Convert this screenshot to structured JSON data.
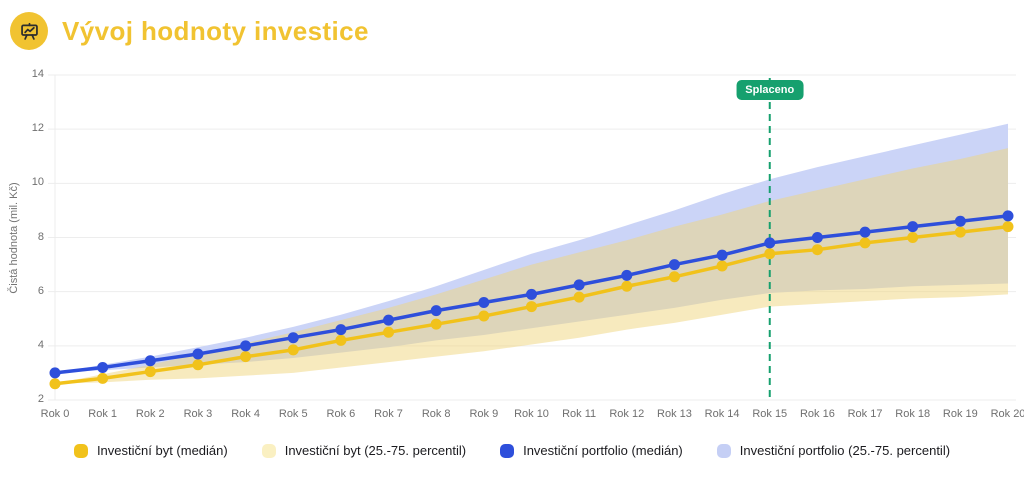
{
  "header": {
    "title": "Vývoj hodnoty investice",
    "icon": "presentation-chart-icon",
    "accent_color": "#F1C331"
  },
  "chart_data": {
    "type": "line",
    "title": "Vývoj hodnoty investice",
    "xlabel": "",
    "ylabel": "Čistá hodnota (mil. Kč)",
    "ylim": [
      2,
      14
    ],
    "yticks": [
      2,
      4,
      6,
      8,
      10,
      12,
      14
    ],
    "grid": "horizontal",
    "legend_position": "bottom",
    "categories": [
      "Rok 0",
      "Rok 1",
      "Rok 2",
      "Rok 3",
      "Rok 4",
      "Rok 5",
      "Rok 6",
      "Rok 7",
      "Rok 8",
      "Rok 9",
      "Rok 10",
      "Rok 11",
      "Rok 12",
      "Rok 13",
      "Rok 14",
      "Rok 15",
      "Rok 16",
      "Rok 17",
      "Rok 18",
      "Rok 19",
      "Rok 20"
    ],
    "annotation": {
      "label": "Splaceno",
      "x": "Rok 15",
      "style": "vertical-dashed-line",
      "color": "#16A06E"
    },
    "series": [
      {
        "name": "Investiční byt (medián)",
        "type": "line",
        "color": "#F1C21B",
        "values": [
          2.6,
          2.8,
          3.05,
          3.3,
          3.6,
          3.85,
          4.2,
          4.5,
          4.8,
          5.1,
          5.45,
          5.8,
          6.2,
          6.55,
          6.95,
          7.4,
          7.55,
          7.8,
          8.0,
          8.2,
          8.4
        ]
      },
      {
        "name": "Investiční byt (25.-75. percentil)",
        "type": "band",
        "color": "#FAF0C2",
        "chart_fill": "rgba(240,213,125,0.5)",
        "lower": [
          2.6,
          2.65,
          2.75,
          2.8,
          2.9,
          3.0,
          3.2,
          3.4,
          3.6,
          3.8,
          4.05,
          4.3,
          4.6,
          4.85,
          5.15,
          5.45,
          5.55,
          5.65,
          5.75,
          5.8,
          5.9
        ],
        "upper": [
          2.6,
          2.95,
          3.3,
          3.7,
          4.1,
          4.5,
          4.95,
          5.4,
          5.9,
          6.45,
          7.0,
          7.45,
          7.9,
          8.4,
          8.85,
          9.35,
          9.75,
          10.15,
          10.55,
          10.9,
          11.3
        ]
      },
      {
        "name": "Investiční portfolio (medián)",
        "type": "line",
        "color": "#2E4FDB",
        "values": [
          3.0,
          3.2,
          3.45,
          3.7,
          4.0,
          4.3,
          4.6,
          4.95,
          5.3,
          5.6,
          5.9,
          6.25,
          6.6,
          7.0,
          7.35,
          7.8,
          8.0,
          8.2,
          8.4,
          8.6,
          8.8
        ]
      },
      {
        "name": "Investiční portfolio (25.-75. percentil)",
        "type": "band",
        "color": "#C5CFF5",
        "chart_fill": "#CBD4F7",
        "lower": [
          3.0,
          3.1,
          3.2,
          3.3,
          3.4,
          3.55,
          3.75,
          3.95,
          4.2,
          4.4,
          4.65,
          4.9,
          5.15,
          5.4,
          5.7,
          5.95,
          6.05,
          6.1,
          6.2,
          6.25,
          6.3
        ],
        "upper": [
          3.0,
          3.3,
          3.6,
          3.95,
          4.3,
          4.7,
          5.15,
          5.65,
          6.2,
          6.8,
          7.4,
          7.9,
          8.45,
          9.0,
          9.6,
          10.15,
          10.6,
          11.0,
          11.4,
          11.8,
          12.2
        ]
      }
    ]
  }
}
